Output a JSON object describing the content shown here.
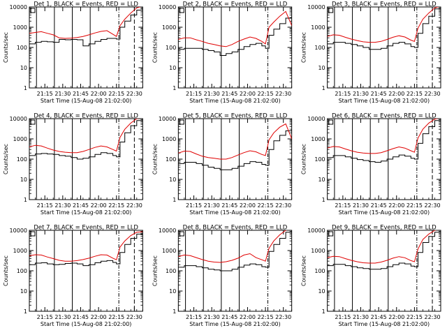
{
  "chart_data": {
    "type": "line",
    "layout": {
      "rows": 3,
      "cols": 3
    },
    "x_range_min": [
      0,
      95
    ],
    "xticks_min": [
      13,
      28,
      43,
      58,
      73,
      88
    ],
    "xtick_labels": [
      "21:15",
      "21:30",
      "21:45",
      "22:00",
      "22:15",
      "22:30"
    ],
    "xlabel": "Start Time (15-Aug-08 21:02:00)",
    "ylabel": "Counts/sec",
    "yscale": "log",
    "ylim": [
      1,
      10000
    ],
    "yticks": [
      1,
      10,
      100,
      1000,
      10000
    ],
    "ytick_labels": [
      "1",
      "10",
      "100",
      "1000",
      "10000"
    ],
    "series_colors": {
      "events": "#000000",
      "lld": "#e00000"
    },
    "x_min": [
      0,
      5,
      10,
      15,
      20,
      25,
      30,
      35,
      40,
      45,
      50,
      55,
      60,
      65,
      70,
      73,
      76,
      80,
      85,
      90,
      95
    ],
    "panels": [
      {
        "title": "Det 1, BLACK = Events, RED = LLD",
        "events": [
          150,
          180,
          200,
          190,
          180,
          250,
          240,
          250,
          240,
          120,
          150,
          200,
          250,
          280,
          280,
          260,
          1000,
          2000,
          4000,
          7000,
          9000
        ],
        "lld": [
          500,
          550,
          600,
          500,
          420,
          300,
          280,
          290,
          310,
          350,
          420,
          520,
          620,
          680,
          450,
          350,
          1200,
          2500,
          5000,
          9000,
          11000
        ],
        "solid_lines_min": [
          6,
          21,
          36,
          51
        ],
        "dashdot_lines_min": [
          75
        ],
        "dashed_lines_min": [
          88
        ]
      },
      {
        "title": "Det 2, BLACK = Events, RED = LLD",
        "events": [
          80,
          90,
          90,
          90,
          80,
          70,
          60,
          40,
          50,
          60,
          80,
          110,
          140,
          160,
          120,
          90,
          400,
          800,
          1500,
          2800,
          3500
        ],
        "lld": [
          250,
          300,
          300,
          240,
          200,
          160,
          140,
          120,
          110,
          140,
          200,
          260,
          330,
          280,
          200,
          150,
          1000,
          1800,
          3500,
          6000,
          1200
        ],
        "solid_lines_min": [
          6,
          21,
          36,
          51
        ],
        "dashdot_lines_min": [
          75
        ],
        "dashed_lines_min": []
      },
      {
        "title": "Det 3, BLACK = Events, RED = LLD",
        "events": [
          150,
          180,
          180,
          160,
          140,
          120,
          100,
          80,
          80,
          90,
          120,
          160,
          180,
          150,
          110,
          100,
          500,
          1500,
          3500,
          8000,
          10000
        ],
        "lld": [
          350,
          420,
          400,
          320,
          260,
          220,
          190,
          180,
          180,
          200,
          250,
          320,
          380,
          330,
          230,
          200,
          900,
          2500,
          5000,
          9000,
          11000
        ],
        "solid_lines_min": [
          6,
          21,
          36,
          51
        ],
        "dashdot_lines_min": [
          75
        ],
        "dashed_lines_min": [
          88
        ]
      },
      {
        "title": "Det 4, BLACK = Events, RED = LLD",
        "events": [
          150,
          180,
          190,
          180,
          170,
          150,
          140,
          120,
          100,
          110,
          130,
          170,
          210,
          190,
          150,
          130,
          700,
          2000,
          4500,
          8000,
          10000
        ],
        "lld": [
          400,
          480,
          450,
          350,
          280,
          240,
          220,
          210,
          210,
          240,
          300,
          380,
          450,
          400,
          300,
          250,
          1200,
          3000,
          6000,
          10000,
          11000
        ],
        "solid_lines_min": [
          6,
          21,
          36,
          51
        ],
        "dashdot_lines_min": [
          75
        ],
        "dashed_lines_min": [
          88
        ]
      },
      {
        "title": "Det 5, BLACK = Events, RED = LLD",
        "events": [
          60,
          70,
          70,
          60,
          50,
          40,
          35,
          30,
          30,
          35,
          45,
          60,
          75,
          70,
          55,
          50,
          300,
          800,
          1500,
          2500,
          3000
        ],
        "lld": [
          200,
          250,
          240,
          180,
          140,
          120,
          110,
          100,
          100,
          120,
          160,
          210,
          260,
          230,
          170,
          150,
          900,
          2000,
          3800,
          5500,
          1000
        ],
        "solid_lines_min": [
          6,
          21,
          36,
          51
        ],
        "dashdot_lines_min": [
          75
        ],
        "dashed_lines_min": []
      },
      {
        "title": "Det 6, BLACK = Events, RED = LLD",
        "events": [
          120,
          150,
          150,
          130,
          110,
          95,
          85,
          75,
          70,
          80,
          100,
          130,
          160,
          140,
          110,
          100,
          600,
          1800,
          4000,
          8000,
          10000
        ],
        "lld": [
          350,
          420,
          400,
          320,
          260,
          220,
          200,
          190,
          190,
          210,
          260,
          330,
          400,
          350,
          260,
          220,
          1100,
          3000,
          6000,
          9500,
          11000
        ],
        "solid_lines_min": [
          6,
          21,
          36,
          51
        ],
        "dashdot_lines_min": [
          75
        ],
        "dashed_lines_min": [
          88
        ]
      },
      {
        "title": "Det 7, BLACK = Events, RED = LLD",
        "events": [
          200,
          240,
          250,
          220,
          200,
          210,
          230,
          240,
          220,
          180,
          200,
          250,
          300,
          320,
          260,
          220,
          800,
          2000,
          4000,
          6500,
          7000
        ],
        "lld": [
          550,
          620,
          600,
          480,
          400,
          330,
          300,
          300,
          320,
          360,
          420,
          520,
          620,
          600,
          420,
          350,
          1500,
          3000,
          5500,
          8000,
          8500
        ],
        "solid_lines_min": [
          6,
          21,
          36,
          51
        ],
        "dashdot_lines_min": [
          75
        ],
        "dashed_lines_min": [
          88
        ]
      },
      {
        "title": "Det 8, BLACK = Events, RED = LLD",
        "events": [
          150,
          180,
          180,
          160,
          140,
          120,
          110,
          100,
          100,
          120,
          150,
          190,
          220,
          200,
          160,
          150,
          900,
          2000,
          4000,
          8000,
          11000
        ],
        "lld": [
          500,
          600,
          560,
          450,
          360,
          300,
          270,
          260,
          280,
          330,
          420,
          600,
          700,
          450,
          350,
          300,
          1300,
          3000,
          6000,
          10000,
          12000
        ],
        "solid_lines_min": [
          6,
          21,
          36,
          51
        ],
        "dashdot_lines_min": [
          75
        ],
        "dashed_lines_min": []
      },
      {
        "title": "Det 9, BLACK = Events, RED = LLD",
        "events": [
          180,
          210,
          210,
          180,
          160,
          140,
          130,
          120,
          120,
          130,
          160,
          200,
          240,
          220,
          170,
          160,
          800,
          2500,
          5000,
          8000,
          10000
        ],
        "lld": [
          450,
          520,
          500,
          400,
          330,
          280,
          250,
          240,
          240,
          270,
          330,
          420,
          500,
          440,
          320,
          280,
          1200,
          3500,
          6500,
          10000,
          11000
        ],
        "solid_lines_min": [
          6,
          21,
          36,
          51
        ],
        "dashdot_lines_min": [
          75
        ],
        "dashed_lines_min": [
          88
        ]
      }
    ]
  }
}
